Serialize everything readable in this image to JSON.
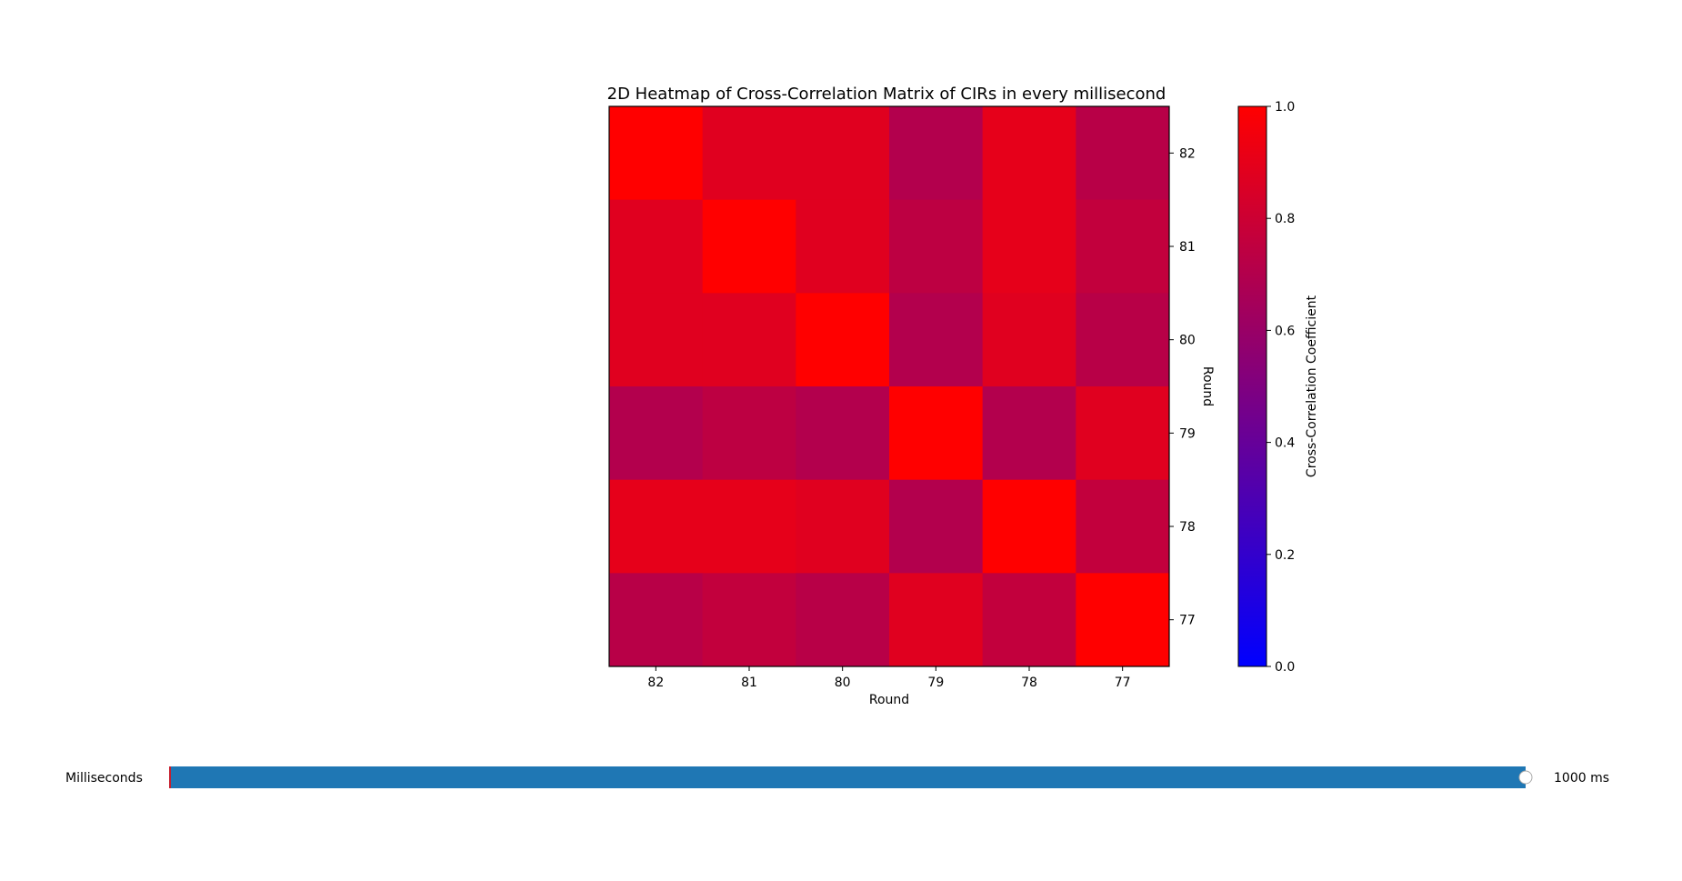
{
  "chart_data": {
    "type": "heatmap",
    "title": "2D Heatmap of Cross-Correlation Matrix of CIRs in every millisecond",
    "xlabel": "Round",
    "ylabel": "Round",
    "x_categories": [
      "82",
      "81",
      "80",
      "79",
      "78",
      "77"
    ],
    "y_categories_top_to_bottom": [
      "82",
      "81",
      "80",
      "79",
      "78",
      "77"
    ],
    "values": [
      [
        1.0,
        0.88,
        0.88,
        0.7,
        0.9,
        0.72
      ],
      [
        0.88,
        1.0,
        0.88,
        0.74,
        0.9,
        0.76
      ],
      [
        0.88,
        0.88,
        1.0,
        0.7,
        0.88,
        0.72
      ],
      [
        0.7,
        0.74,
        0.7,
        1.0,
        0.7,
        0.88
      ],
      [
        0.9,
        0.9,
        0.88,
        0.7,
        1.0,
        0.76
      ],
      [
        0.72,
        0.76,
        0.72,
        0.88,
        0.76,
        1.0
      ]
    ],
    "colorbar": {
      "label": "Cross-Correlation Coefficient",
      "ticks": [
        "0.0",
        "0.2",
        "0.4",
        "0.6",
        "0.8",
        "1.0"
      ],
      "range": [
        0.0,
        1.0
      ],
      "colormap": [
        "#0000ff",
        "#ff0000"
      ]
    }
  },
  "slider": {
    "label": "Milliseconds",
    "value_text": "1000 ms",
    "fill_fraction": 1.0,
    "color": "#1f77b4",
    "start_marker_color": "#ff0000"
  }
}
